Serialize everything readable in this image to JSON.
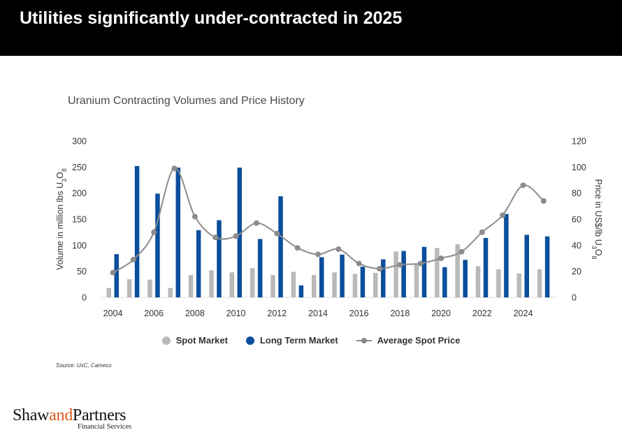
{
  "header": {
    "title": "Utilities significantly under-contracted in 2025"
  },
  "source": "Source: UxC, Cameco",
  "logo": {
    "name_part1": "Shaw",
    "name_part2": "and",
    "name_part3": "Partners",
    "subtitle": "Financial Services"
  },
  "colors": {
    "spot": "#b9b9b9",
    "long_term": "#0a4f9c",
    "price_line": "#8c8c8c"
  },
  "chart_data": {
    "type": "bar",
    "title": "Uranium Contracting Volumes and Price History",
    "ylabel": "Volume in million lbs U3O8",
    "ylabel_parts": [
      "Volume in million lbs U",
      "3",
      "O",
      "8"
    ],
    "y2label": "Price in US$/lb U3O8",
    "y2label_parts": [
      "Price in US$/lb U",
      "3",
      "O",
      "8"
    ],
    "ylim": [
      0,
      300
    ],
    "y2lim": [
      0,
      120
    ],
    "yticks": [
      0,
      50,
      100,
      150,
      200,
      250,
      300
    ],
    "y2ticks": [
      0,
      20,
      40,
      60,
      80,
      100,
      120
    ],
    "xticks": [
      2004,
      2006,
      2008,
      2010,
      2012,
      2014,
      2016,
      2018,
      2020,
      2022,
      2024
    ],
    "grid": false,
    "legend_position": "bottom",
    "categories": [
      2004,
      2005,
      2006,
      2007,
      2008,
      2009,
      2010,
      2011,
      2012,
      2013,
      2014,
      2015,
      2016,
      2017,
      2018,
      2019,
      2020,
      2021,
      2022,
      2023,
      2024,
      2025
    ],
    "series": [
      {
        "name": "Spot Market",
        "type": "bar",
        "axis": "left",
        "values": [
          18,
          35,
          34,
          18,
          43,
          52,
          48,
          56,
          43,
          49,
          43,
          48,
          45,
          47,
          88,
          64,
          95,
          102,
          60,
          54,
          46,
          54
        ]
      },
      {
        "name": "Long Term Market",
        "type": "bar",
        "axis": "left",
        "values": [
          83,
          252,
          199,
          249,
          129,
          148,
          249,
          112,
          194,
          23,
          77,
          82,
          59,
          73,
          89,
          97,
          58,
          72,
          114,
          160,
          120,
          117
        ]
      },
      {
        "name": "Average Spot Price",
        "type": "line",
        "axis": "right",
        "values": [
          19,
          29,
          50,
          99,
          62,
          46,
          47,
          57,
          49,
          38,
          33,
          37,
          26,
          22,
          25,
          26,
          30,
          35,
          50,
          63,
          86,
          74
        ]
      }
    ]
  }
}
